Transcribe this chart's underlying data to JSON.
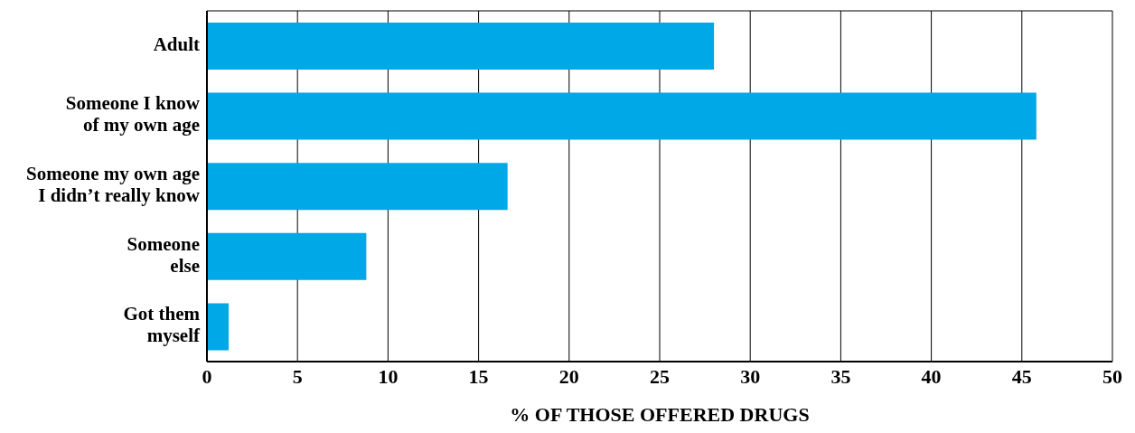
{
  "chart_data": {
    "type": "bar",
    "orientation": "horizontal",
    "xlabel": "% OF THOSE OFFERED DRUGS",
    "categories": [
      "Adult",
      "Someone I know\nof my own age",
      "Someone my own age\nI didn’t really know",
      "Someone\nelse",
      "Got them\nmyself"
    ],
    "values": [
      28.0,
      45.8,
      16.6,
      8.8,
      1.2
    ],
    "color": "#00a8e8",
    "xlim": [
      0,
      50
    ],
    "xticks": [
      0,
      5,
      10,
      15,
      20,
      25,
      30,
      35,
      40,
      45,
      50
    ],
    "grid": "x",
    "legend": false
  }
}
